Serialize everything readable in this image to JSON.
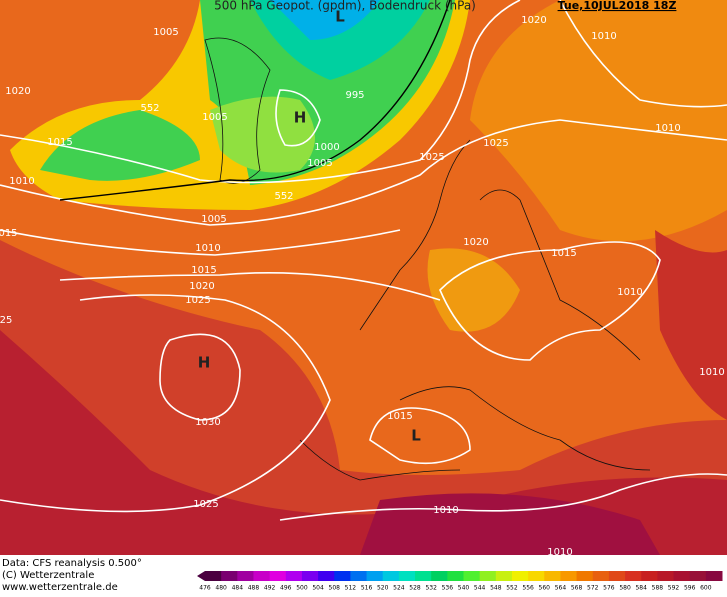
{
  "header": {
    "title": "500 hPa Geopot. (gpdm), Bodendruck (hPa)",
    "date": "Tue,10JUL2018 18Z"
  },
  "map": {
    "labels": [
      "1005",
      "1020",
      "552",
      "1005",
      "1015",
      "1010",
      "1005",
      "1010",
      "1015",
      "1020",
      "1025",
      "015",
      "25",
      "H",
      "1030",
      "1025",
      "995",
      "H",
      "1000",
      "1005",
      "552",
      "L",
      "1020",
      "1010",
      "1025",
      "1025",
      "1010",
      "1020",
      "1015",
      "1010",
      "1010",
      "1015",
      "L",
      "1010",
      "1010"
    ]
  },
  "footer": {
    "source": "Data: CFS reanalysis 0.500°",
    "copyright": "(C) Wetterzentrale",
    "url": "www.wetterzentrale.de"
  },
  "legend": {
    "levels": [
      476,
      480,
      484,
      488,
      492,
      496,
      500,
      504,
      508,
      512,
      516,
      520,
      524,
      528,
      532,
      536,
      540,
      544,
      548,
      552,
      556,
      560,
      564,
      568,
      572,
      576,
      580,
      584,
      588,
      592,
      596,
      600
    ],
    "colors": [
      "#4b0040",
      "#7a0070",
      "#a000a0",
      "#c800c8",
      "#e000e0",
      "#b000f0",
      "#7a00f0",
      "#4000f0",
      "#0030f0",
      "#0070f0",
      "#00a0f0",
      "#00c8e0",
      "#00e0c0",
      "#00e090",
      "#00d060",
      "#20e040",
      "#50f030",
      "#90f020",
      "#c8f010",
      "#f0f000",
      "#f8d800",
      "#f8b800",
      "#f89800",
      "#f07800",
      "#e86010",
      "#e04818",
      "#d83020",
      "#c82020",
      "#b81828",
      "#a81030",
      "#981038",
      "#880840"
    ]
  }
}
